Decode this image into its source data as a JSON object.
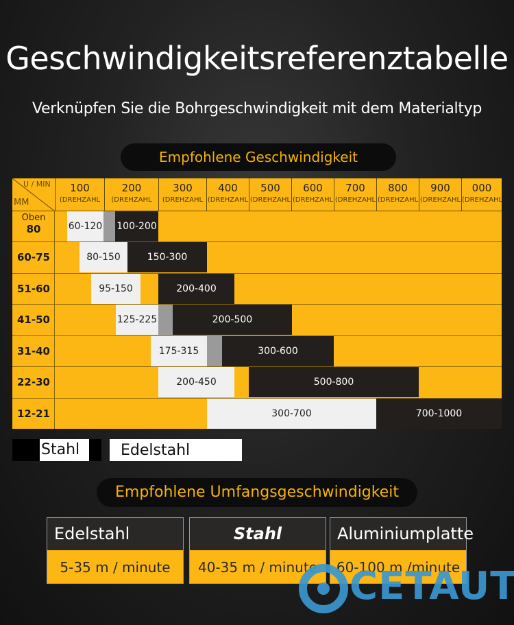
{
  "title": "Geschwindigkeitsreferenztabelle",
  "subtitle": "Verknüpfen Sie die Bohrgeschwindigkeit mit dem Materialtyp",
  "section1": "Empfohlene Geschwindigkeit",
  "section2": "Empfohlene Umfangsgeschwindigkeit",
  "corner": {
    "top": "U / MIN",
    "left": "MM"
  },
  "columns": [
    {
      "num": "100",
      "sub": "(DREHZAHL"
    },
    {
      "num": "200",
      "sub": "(DREHZAHL"
    },
    {
      "num": "300",
      "sub": "(DREHZAHL"
    },
    {
      "num": "400",
      "sub": "(DREHZAHL"
    },
    {
      "num": "500",
      "sub": "(DREHZAHL"
    },
    {
      "num": "600",
      "sub": "(DREHZAHL"
    },
    {
      "num": "700",
      "sub": "(DREHZAHL"
    },
    {
      "num": "800",
      "sub": "(DREHZAHL"
    },
    {
      "num": "900",
      "sub": "(DREHZAHL"
    },
    {
      "num": "000",
      "sub": "(DREHZAHL"
    }
  ],
  "rows": [
    {
      "label_small": "Oben",
      "label": "80",
      "ss": "60-120",
      "st": "100-200"
    },
    {
      "label_small": "",
      "label": "60-75",
      "ss": "80-150",
      "st": "150-300"
    },
    {
      "label_small": "",
      "label": "51-60",
      "ss": "95-150",
      "st": "200-400"
    },
    {
      "label_small": "",
      "label": "41-50",
      "ss": "125-225",
      "st": "200-500"
    },
    {
      "label_small": "",
      "label": "31-40",
      "ss": "175-315",
      "st": "300-600"
    },
    {
      "label_small": "",
      "label": "22-30",
      "ss": "200-450",
      "st": "500-800"
    },
    {
      "label_small": "",
      "label": "12-21",
      "ss": "300-700",
      "st": "700-1000"
    }
  ],
  "legend": {
    "steel": "Stahl",
    "stainless": "Edelstahl"
  },
  "cards": [
    {
      "head": "Edelstahl",
      "value": "5-35 m / minute"
    },
    {
      "head": "Stahl",
      "value": "40-35 m / minute"
    },
    {
      "head": "Aluminiumplatte",
      "value": "60-100 m /minute"
    }
  ],
  "logo": "CETAUT",
  "colors": {
    "accent": "#fdb714",
    "steel": "#231f1c",
    "stainless": "#f0f0f0",
    "logo": "#3a97d0"
  }
}
